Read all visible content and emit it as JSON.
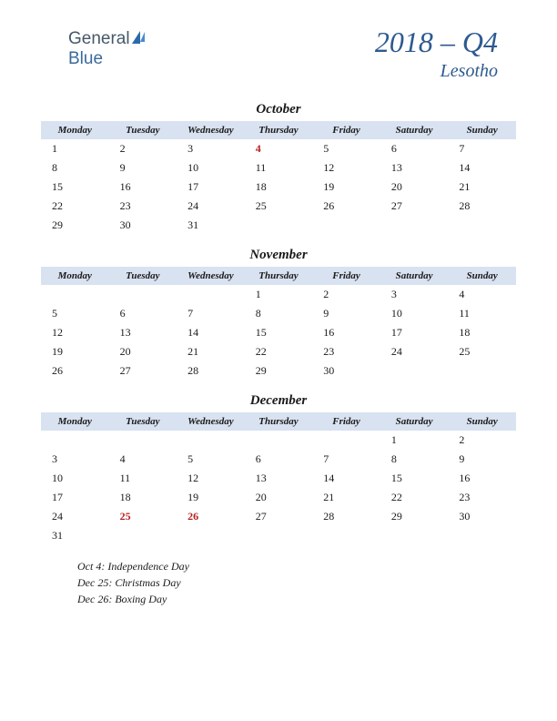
{
  "logo": {
    "part1": "General",
    "part2": "Blue"
  },
  "title": "2018 – Q4",
  "subtitle": "Lesotho",
  "day_headers": [
    "Monday",
    "Tuesday",
    "Wednesday",
    "Thursday",
    "Friday",
    "Saturday",
    "Sunday"
  ],
  "colors": {
    "accent": "#2d5a8f",
    "header_bg": "#d8e2f0",
    "text": "#1a1a1a",
    "holiday": "#b82020",
    "background": "#ffffff"
  },
  "typography": {
    "title_fontsize": 32,
    "subtitle_fontsize": 20,
    "month_fontsize": 15,
    "dayheader_fontsize": 11,
    "cell_fontsize": 12,
    "holiday_list_fontsize": 12,
    "font_family": "Georgia, serif",
    "italic": true
  },
  "months": [
    {
      "name": "October",
      "weeks": [
        [
          {
            "d": "1"
          },
          {
            "d": "2"
          },
          {
            "d": "3"
          },
          {
            "d": "4",
            "h": true
          },
          {
            "d": "5"
          },
          {
            "d": "6"
          },
          {
            "d": "7"
          }
        ],
        [
          {
            "d": "8"
          },
          {
            "d": "9"
          },
          {
            "d": "10"
          },
          {
            "d": "11"
          },
          {
            "d": "12"
          },
          {
            "d": "13"
          },
          {
            "d": "14"
          }
        ],
        [
          {
            "d": "15"
          },
          {
            "d": "16"
          },
          {
            "d": "17"
          },
          {
            "d": "18"
          },
          {
            "d": "19"
          },
          {
            "d": "20"
          },
          {
            "d": "21"
          }
        ],
        [
          {
            "d": "22"
          },
          {
            "d": "23"
          },
          {
            "d": "24"
          },
          {
            "d": "25"
          },
          {
            "d": "26"
          },
          {
            "d": "27"
          },
          {
            "d": "28"
          }
        ],
        [
          {
            "d": "29"
          },
          {
            "d": "30"
          },
          {
            "d": "31"
          },
          {
            "d": ""
          },
          {
            "d": ""
          },
          {
            "d": ""
          },
          {
            "d": ""
          }
        ]
      ]
    },
    {
      "name": "November",
      "weeks": [
        [
          {
            "d": ""
          },
          {
            "d": ""
          },
          {
            "d": ""
          },
          {
            "d": "1"
          },
          {
            "d": "2"
          },
          {
            "d": "3"
          },
          {
            "d": "4"
          }
        ],
        [
          {
            "d": "5"
          },
          {
            "d": "6"
          },
          {
            "d": "7"
          },
          {
            "d": "8"
          },
          {
            "d": "9"
          },
          {
            "d": "10"
          },
          {
            "d": "11"
          }
        ],
        [
          {
            "d": "12"
          },
          {
            "d": "13"
          },
          {
            "d": "14"
          },
          {
            "d": "15"
          },
          {
            "d": "16"
          },
          {
            "d": "17"
          },
          {
            "d": "18"
          }
        ],
        [
          {
            "d": "19"
          },
          {
            "d": "20"
          },
          {
            "d": "21"
          },
          {
            "d": "22"
          },
          {
            "d": "23"
          },
          {
            "d": "24"
          },
          {
            "d": "25"
          }
        ],
        [
          {
            "d": "26"
          },
          {
            "d": "27"
          },
          {
            "d": "28"
          },
          {
            "d": "29"
          },
          {
            "d": "30"
          },
          {
            "d": ""
          },
          {
            "d": ""
          }
        ]
      ]
    },
    {
      "name": "December",
      "weeks": [
        [
          {
            "d": ""
          },
          {
            "d": ""
          },
          {
            "d": ""
          },
          {
            "d": ""
          },
          {
            "d": ""
          },
          {
            "d": "1"
          },
          {
            "d": "2"
          }
        ],
        [
          {
            "d": "3"
          },
          {
            "d": "4"
          },
          {
            "d": "5"
          },
          {
            "d": "6"
          },
          {
            "d": "7"
          },
          {
            "d": "8"
          },
          {
            "d": "9"
          }
        ],
        [
          {
            "d": "10"
          },
          {
            "d": "11"
          },
          {
            "d": "12"
          },
          {
            "d": "13"
          },
          {
            "d": "14"
          },
          {
            "d": "15"
          },
          {
            "d": "16"
          }
        ],
        [
          {
            "d": "17"
          },
          {
            "d": "18"
          },
          {
            "d": "19"
          },
          {
            "d": "20"
          },
          {
            "d": "21"
          },
          {
            "d": "22"
          },
          {
            "d": "23"
          }
        ],
        [
          {
            "d": "24"
          },
          {
            "d": "25",
            "h": true
          },
          {
            "d": "26",
            "h": true
          },
          {
            "d": "27"
          },
          {
            "d": "28"
          },
          {
            "d": "29"
          },
          {
            "d": "30"
          }
        ],
        [
          {
            "d": "31"
          },
          {
            "d": ""
          },
          {
            "d": ""
          },
          {
            "d": ""
          },
          {
            "d": ""
          },
          {
            "d": ""
          },
          {
            "d": ""
          }
        ]
      ]
    }
  ],
  "holiday_list": [
    "Oct 4: Independence Day",
    "Dec 25: Christmas Day",
    "Dec 26: Boxing Day"
  ]
}
